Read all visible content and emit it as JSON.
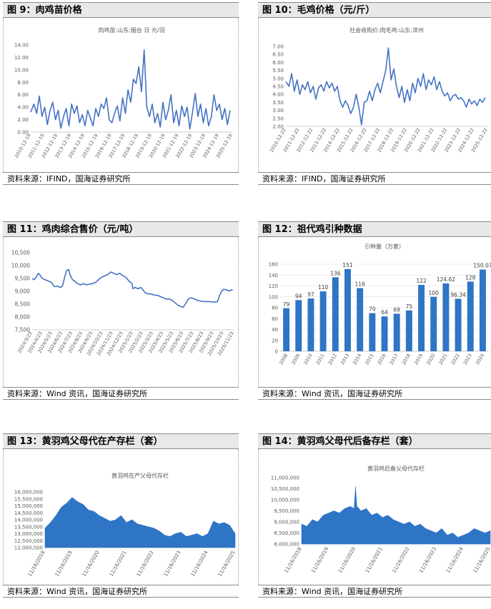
{
  "panels": [
    {
      "id": "p9",
      "title": "图 9：肉鸡苗价格",
      "source": "资料来源：IFIND，国海证券研究所"
    },
    {
      "id": "p10",
      "title": "图 10：毛鸡价格（元/斤）",
      "source": "资料来源：IFIND，国海证券研究所"
    },
    {
      "id": "p11",
      "title": "图 11：鸡肉综合售价（元/吨）",
      "source": "资料来源：Wind 资讯，国海证券研究所"
    },
    {
      "id": "p12",
      "title": "图 12：祖代鸡引种数据",
      "source": "资料来源：Wind 资讯，国海证券研究所"
    },
    {
      "id": "p13",
      "title": "图 13：黄羽鸡父母代在产存栏（套）",
      "source": "资料来源：Wind 资讯，国海证券研究所"
    },
    {
      "id": "p14",
      "title": "图 14：黄羽鸡父母代后备存栏（套）",
      "source": "资料来源：Wind 资讯，国海证券研究所"
    }
  ],
  "colors": {
    "line": "#4472c4",
    "bar": "#2e75c6",
    "area": "#2e75c6"
  },
  "chart_data": [
    {
      "id": "p9",
      "type": "line",
      "title": "肉鸡苗:山东:烟台 日 元/羽",
      "ylim": [
        0,
        14
      ],
      "yticks": [
        "0.00",
        "2.00",
        "4.00",
        "6.00",
        "8.00",
        "10.00",
        "12.00",
        "14.00"
      ],
      "xticks": [
        "2010-12-19",
        "2011-12-19",
        "2012-12-19",
        "2013-12-19",
        "2014-12-19",
        "2015-12-19",
        "2016-12-19",
        "2017-12-19",
        "2018-12-19",
        "2019-12-19",
        "2020-12-19",
        "2021-12-19",
        "2022-12-19",
        "2023-12-19",
        "2024-12-19",
        "2025-12-19"
      ],
      "x": [
        2010.96,
        2011.2,
        2011.4,
        2011.6,
        2011.8,
        2012.0,
        2012.2,
        2012.4,
        2012.6,
        2012.8,
        2013.0,
        2013.2,
        2013.4,
        2013.6,
        2013.8,
        2014.0,
        2014.2,
        2014.4,
        2014.6,
        2014.8,
        2015.0,
        2015.2,
        2015.4,
        2015.6,
        2015.8,
        2016.0,
        2016.2,
        2016.4,
        2016.6,
        2016.8,
        2017.0,
        2017.2,
        2017.4,
        2017.6,
        2017.8,
        2018.0,
        2018.2,
        2018.4,
        2018.6,
        2018.8,
        2019.0,
        2019.2,
        2019.4,
        2019.6,
        2019.8,
        2020.0,
        2020.2,
        2020.4,
        2020.6,
        2020.8,
        2021.0,
        2021.2,
        2021.4,
        2021.6,
        2021.8,
        2022.0,
        2022.2,
        2022.4,
        2022.6,
        2022.8,
        2023.0,
        2023.2,
        2023.4,
        2023.6,
        2023.8,
        2024.0,
        2024.2,
        2024.4,
        2024.6,
        2024.8,
        2025.0,
        2025.2,
        2025.4,
        2025.6,
        2025.8
      ],
      "values": [
        3.2,
        4.5,
        3.0,
        5.8,
        2.5,
        4.0,
        1.2,
        3.5,
        4.8,
        2.0,
        3.5,
        0.6,
        2.5,
        3.8,
        1.0,
        4.5,
        3.0,
        4.2,
        1.5,
        2.8,
        1.0,
        3.5,
        2.2,
        1.0,
        3.8,
        2.5,
        4.5,
        3.8,
        5.5,
        2.0,
        1.5,
        3.0,
        4.2,
        1.8,
        5.5,
        3.0,
        6.8,
        4.8,
        8.5,
        7.8,
        10.5,
        6.5,
        13.2,
        4.0,
        2.5,
        4.5,
        1.5,
        3.0,
        0.8,
        4.8,
        2.0,
        3.5,
        6.0,
        1.5,
        3.5,
        1.0,
        4.2,
        2.5,
        4.0,
        0.5,
        3.2,
        6.2,
        2.5,
        4.5,
        1.5,
        3.8,
        1.0,
        2.5,
        6.0,
        3.5,
        4.5,
        2.0,
        3.8,
        1.2,
        3.5
      ]
    },
    {
      "id": "p10",
      "type": "line",
      "title": "社会收购价:肉毛鸡:山东:滨州",
      "ylim": [
        2,
        7
      ],
      "yticks": [
        "2.00",
        "2.50",
        "3.00",
        "3.50",
        "4.00",
        "4.50",
        "5.00",
        "5.50",
        "6.00",
        "6.50",
        "7.00"
      ],
      "xticks": [
        "2010-12-22",
        "2011-12-22",
        "2012-12-22",
        "2013-12-22",
        "2014-12-22",
        "2015-12-22",
        "2016-12-22",
        "2017-12-22",
        "2018-12-22",
        "2019-12-22",
        "2020-12-22",
        "2021-12-22",
        "2022-12-22",
        "2023-12-22",
        "2024-12-22",
        "2025-12-22"
      ],
      "x": [
        2010.97,
        2011.2,
        2011.4,
        2011.6,
        2011.8,
        2012.0,
        2012.2,
        2012.4,
        2012.6,
        2012.8,
        2013.0,
        2013.2,
        2013.4,
        2013.6,
        2013.8,
        2014.0,
        2014.2,
        2014.4,
        2014.6,
        2014.8,
        2015.0,
        2015.2,
        2015.4,
        2015.6,
        2015.8,
        2016.0,
        2016.2,
        2016.4,
        2016.6,
        2016.8,
        2017.0,
        2017.2,
        2017.4,
        2017.6,
        2017.8,
        2018.0,
        2018.2,
        2018.4,
        2018.6,
        2018.8,
        2019.0,
        2019.2,
        2019.4,
        2019.6,
        2019.8,
        2020.0,
        2020.2,
        2020.4,
        2020.6,
        2020.8,
        2021.0,
        2021.2,
        2021.4,
        2021.6,
        2021.8,
        2022.0,
        2022.2,
        2022.4,
        2022.6,
        2022.8,
        2023.0,
        2023.2,
        2023.4,
        2023.6,
        2023.8,
        2024.0,
        2024.2,
        2024.4,
        2024.6,
        2024.8,
        2025.0,
        2025.2,
        2025.4,
        2025.6,
        2025.8
      ],
      "values": [
        4.8,
        4.5,
        5.3,
        4.2,
        4.9,
        4.0,
        4.6,
        4.3,
        4.8,
        4.1,
        4.5,
        3.7,
        4.4,
        4.6,
        4.2,
        4.8,
        4.4,
        4.7,
        4.2,
        4.5,
        3.6,
        3.2,
        3.6,
        3.3,
        2.8,
        3.2,
        4.0,
        3.2,
        2.1,
        3.5,
        3.6,
        4.2,
        3.6,
        4.3,
        4.7,
        4.1,
        4.8,
        5.5,
        6.9,
        4.9,
        5.6,
        4.5,
        3.8,
        4.5,
        3.5,
        4.3,
        3.6,
        4.7,
        4.1,
        5.0,
        4.5,
        5.3,
        4.3,
        4.9,
        4.6,
        5.1,
        4.3,
        4.8,
        4.2,
        3.9,
        4.1,
        3.6,
        3.9,
        4.0,
        3.7,
        3.8,
        3.6,
        3.2,
        3.7,
        3.4,
        3.6,
        3.3,
        3.7,
        3.5,
        3.8
      ]
    },
    {
      "id": "p11",
      "type": "line",
      "ylim": [
        7500,
        10500
      ],
      "yticks": [
        "7,500",
        "8,000",
        "8,500",
        "9,000",
        "9,500",
        "10,000",
        "10,500"
      ],
      "xticks": [
        "2024/3/23",
        "2024/4/23",
        "2024/5/23",
        "2024/6/23",
        "2024/7/23",
        "2024/8/23",
        "2024/9/23",
        "2024/10/23",
        "2024/11/23",
        "2024/12/23",
        "2025/1/23",
        "2025/2/23",
        "2025/3/23",
        "2025/4/23",
        "2025/5/23",
        "2025/6/23",
        "2025/7/23",
        "2025/8/23",
        "2025/9/23",
        "2025/10/23",
        "2025/11/23"
      ],
      "x": [
        0,
        0.2,
        0.4,
        0.6,
        0.8,
        1.0,
        1.3,
        1.6,
        1.9,
        2.2,
        2.5,
        2.8,
        3.0,
        3.2,
        3.4,
        3.6,
        3.8,
        4.0,
        4.2,
        4.5,
        4.8,
        5.1,
        5.4,
        5.7,
        6.0,
        6.3,
        6.6,
        6.9,
        7.2,
        7.5,
        7.8,
        8.1,
        8.4,
        8.7,
        9.0,
        9.3,
        9.6,
        9.9,
        10.0,
        10.2,
        10.5,
        10.8,
        11.0,
        11.2,
        11.5,
        11.8,
        12.1,
        12.4,
        12.7,
        13.0,
        13.3,
        13.6,
        13.9,
        14.2,
        14.5,
        14.8,
        15.0,
        15.2,
        15.5,
        15.8,
        16.1,
        16.4,
        16.7,
        17.0,
        17.3,
        17.6,
        17.9,
        18.2,
        18.4,
        18.6,
        18.8,
        19.0,
        19.3,
        19.6,
        19.9
      ],
      "values": [
        9500,
        9450,
        9550,
        9700,
        9620,
        9500,
        9450,
        9400,
        9350,
        9180,
        9200,
        9150,
        9200,
        9500,
        9800,
        9850,
        9600,
        9450,
        9400,
        9300,
        9250,
        9300,
        9250,
        9280,
        9300,
        9350,
        9450,
        9550,
        9600,
        9650,
        9750,
        9700,
        9650,
        9700,
        9600,
        9550,
        9400,
        9300,
        9100,
        9150,
        9100,
        9150,
        9050,
        8950,
        8900,
        8900,
        8850,
        8850,
        8800,
        8750,
        8700,
        8700,
        8650,
        8550,
        8450,
        8400,
        8380,
        8500,
        8700,
        8750,
        8700,
        8650,
        8620,
        8600,
        8600,
        8600,
        8580,
        8580,
        8600,
        8850,
        9000,
        9080,
        9050,
        9020,
        9060
      ]
    },
    {
      "id": "p12",
      "type": "bar",
      "title": "引种量（万套）",
      "ylim": [
        0,
        160
      ],
      "yticks": [
        "0",
        "20",
        "40",
        "60",
        "80",
        "100",
        "120",
        "140",
        "160"
      ],
      "categories": [
        "2008",
        "2009",
        "2010",
        "2011",
        "2012",
        "2013",
        "2014",
        "2015",
        "2016",
        "2017",
        "2018",
        "2019",
        "2020",
        "2021",
        "2022",
        "2023",
        "2024"
      ],
      "values": [
        79,
        94,
        97,
        110,
        136,
        151,
        116,
        70,
        64,
        69,
        75,
        122,
        100,
        124.62,
        96.34,
        128,
        150.07
      ],
      "labels": [
        "79",
        "94",
        "97",
        "110",
        "136",
        "151",
        "116",
        "70",
        "64",
        "69",
        "75",
        "122",
        "100",
        "124.62",
        "96.34",
        "128",
        "150.07"
      ]
    },
    {
      "id": "p13",
      "type": "area",
      "title": "黄羽鸡在产父母代存栏",
      "ylim": [
        12000000,
        16000000
      ],
      "yticks": [
        "12,000,000",
        "12,500,000",
        "13,000,000",
        "13,500,000",
        "14,000,000",
        "14,500,000",
        "15,000,000",
        "15,500,000",
        "16,000,000"
      ],
      "xticks": [
        "11/16/2018",
        "11/16/2019",
        "11/16/2020",
        "11/16/2021",
        "11/16/2022",
        "11/16/2023",
        "11/16/2024",
        "11/16/2025"
      ],
      "x": [
        0,
        0.2,
        0.4,
        0.6,
        0.8,
        1.0,
        1.2,
        1.4,
        1.6,
        1.8,
        2.0,
        2.2,
        2.4,
        2.6,
        2.8,
        3.0,
        3.2,
        3.4,
        3.6,
        3.8,
        4.0,
        4.2,
        4.4,
        4.6,
        4.8,
        5.0,
        5.2,
        5.4,
        5.6,
        5.8,
        6.0,
        6.2,
        6.4,
        6.6,
        6.8,
        7.0
      ],
      "values": [
        13400000,
        13800000,
        14300000,
        14900000,
        15200000,
        15600000,
        15300000,
        15100000,
        14700000,
        14600000,
        14300000,
        14100000,
        13900000,
        14000000,
        14300000,
        13800000,
        14000000,
        13700000,
        13600000,
        13500000,
        13400000,
        13200000,
        12900000,
        12800000,
        13000000,
        13100000,
        12800000,
        12900000,
        13000000,
        12800000,
        13000000,
        13900000,
        13700000,
        13800000,
        13600000,
        13000000
      ]
    },
    {
      "id": "p14",
      "type": "area",
      "title": "黄羽鸡后备父母代存栏",
      "ylim": [
        8000000,
        11000000
      ],
      "yticks": [
        "8,000,000",
        "8,500,000",
        "9,000,000",
        "9,500,000",
        "10,000,000",
        "10,500,000",
        "11,000,000"
      ],
      "xticks": [
        "11/16/2018",
        "11/16/2019",
        "11/16/2020",
        "11/16/2021",
        "11/16/2022",
        "11/16/2023",
        "11/16/2024",
        "11/16/2025"
      ],
      "x": [
        0,
        0.2,
        0.4,
        0.6,
        0.8,
        1.0,
        1.2,
        1.4,
        1.6,
        1.8,
        1.95,
        2.0,
        2.05,
        2.2,
        2.4,
        2.6,
        2.8,
        3.0,
        3.2,
        3.4,
        3.6,
        3.8,
        4.0,
        4.2,
        4.4,
        4.6,
        4.8,
        5.0,
        5.2,
        5.4,
        5.6,
        5.8,
        6.0,
        6.2,
        6.4,
        6.6,
        6.8,
        7.0
      ],
      "values": [
        8900000,
        8800000,
        9100000,
        9000000,
        9300000,
        9400000,
        9500000,
        9400000,
        9600000,
        9700000,
        9600000,
        10600000,
        9700000,
        9500000,
        9600000,
        9300000,
        9400000,
        9200000,
        9300000,
        9100000,
        9000000,
        8900000,
        9000000,
        8800000,
        8900000,
        8700000,
        8600000,
        8500000,
        8700000,
        8400000,
        8500000,
        8300000,
        8400000,
        8500000,
        8700000,
        8600000,
        8500000,
        8600000
      ]
    }
  ]
}
